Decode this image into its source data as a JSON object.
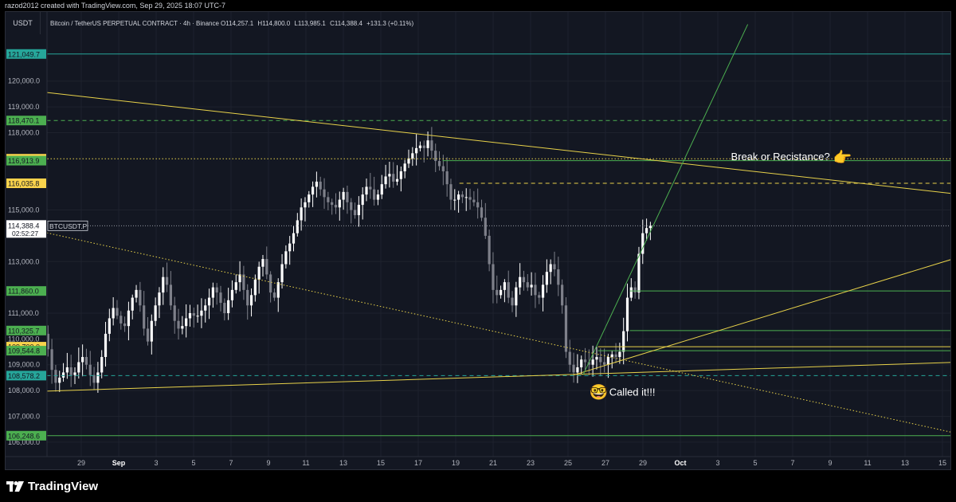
{
  "header": {
    "attribution": "razod2012 created with TradingView.com, Sep 29, 2025 18:07 UTC-7"
  },
  "symbol_bar": {
    "currency": "USDT",
    "title": "Bitcoin / TetherUS PERPETUAL CONTRACT · 4h · Binance",
    "open_label": "O",
    "open": "114,257.1",
    "high_label": "H",
    "high": "114,800.0",
    "low_label": "L",
    "low": "113,985.1",
    "close_label": "C",
    "close": "114,388.4",
    "change": "+131.3 (+0.11%)"
  },
  "footer": {
    "brand": "TradingView"
  },
  "colors": {
    "background": "#131722",
    "candle_up": "#ffffff",
    "candle_down": "#7e808a",
    "trendline": "#e8d24a",
    "level_green": "#4caf50",
    "level_teal": "#26a69a",
    "grid": "#1e222d"
  },
  "chart_data": {
    "type": "candlestick",
    "ylim": [
      105500,
      122000
    ],
    "y_ticks": [
      106000,
      107000,
      108000,
      109000,
      110000,
      111000,
      113000,
      115000,
      118000,
      119000,
      120000
    ],
    "y_tick_labels": [
      "106,000.0",
      "107,000.0",
      "108,000.0",
      "109,000.0",
      "110,000.0",
      "111,000.0",
      "113,000.0",
      "115,000.0",
      "118,000.0",
      "119,000.0",
      "120,000.0"
    ],
    "x_ticks": [
      {
        "day": 29,
        "label": "29",
        "bold": false
      },
      {
        "day": 31,
        "label": "Sep",
        "bold": true
      },
      {
        "day": 33,
        "label": "3",
        "bold": false
      },
      {
        "day": 35,
        "label": "5",
        "bold": false
      },
      {
        "day": 37,
        "label": "7",
        "bold": false
      },
      {
        "day": 39,
        "label": "9",
        "bold": false
      },
      {
        "day": 41,
        "label": "11",
        "bold": false
      },
      {
        "day": 43,
        "label": "13",
        "bold": false
      },
      {
        "day": 45,
        "label": "15",
        "bold": false
      },
      {
        "day": 47,
        "label": "17",
        "bold": false
      },
      {
        "day": 49,
        "label": "19",
        "bold": false
      },
      {
        "day": 51,
        "label": "21",
        "bold": false
      },
      {
        "day": 53,
        "label": "23",
        "bold": false
      },
      {
        "day": 55,
        "label": "25",
        "bold": false
      },
      {
        "day": 57,
        "label": "27",
        "bold": false
      },
      {
        "day": 59,
        "label": "29",
        "bold": false
      },
      {
        "day": 61,
        "label": "Oct",
        "bold": true
      },
      {
        "day": 63,
        "label": "3",
        "bold": false
      },
      {
        "day": 65,
        "label": "5",
        "bold": false
      },
      {
        "day": 67,
        "label": "7",
        "bold": false
      },
      {
        "day": 69,
        "label": "9",
        "bold": false
      },
      {
        "day": 71,
        "label": "11",
        "bold": false
      },
      {
        "day": 73,
        "label": "13",
        "bold": false
      },
      {
        "day": 75,
        "label": "15",
        "bold": false
      }
    ],
    "price_closes": [
      111800,
      112200,
      111500,
      110800,
      110200,
      109600,
      108800,
      108300,
      108500,
      108700,
      108900,
      108600,
      108700,
      109100,
      109300,
      109000,
      108600,
      108300,
      108700,
      109300,
      110200,
      110800,
      111200,
      110900,
      110600,
      110500,
      111100,
      111600,
      111900,
      111300,
      110400,
      109900,
      110700,
      111300,
      111800,
      112400,
      112100,
      111300,
      110700,
      110400,
      110500,
      110800,
      111000,
      110900,
      110900,
      111100,
      111300,
      111600,
      112000,
      111800,
      111400,
      111000,
      111500,
      111900,
      112200,
      112500,
      111900,
      111300,
      111700,
      112300,
      112800,
      113100,
      112500,
      111800,
      111600,
      112200,
      112900,
      113400,
      113700,
      114100,
      114600,
      115100,
      115300,
      115600,
      115900,
      116100,
      115800,
      115500,
      115300,
      115200,
      115100,
      115400,
      115700,
      115300,
      115000,
      114800,
      115200,
      115600,
      115900,
      115800,
      115400,
      115600,
      116000,
      116300,
      116400,
      116100,
      116200,
      116500,
      116800,
      117000,
      117200,
      117400,
      117500,
      117400,
      117700,
      117300,
      116900,
      116700,
      116500,
      116000,
      115400,
      115400,
      115600,
      115500,
      115500,
      115400,
      115300,
      115100,
      114700,
      114000,
      112900,
      111900,
      111700,
      111900,
      112200,
      111600,
      111300,
      112000,
      112400,
      112200,
      112000,
      112100,
      111700,
      111600,
      112100,
      112600,
      112900,
      112700,
      112100,
      111300,
      109500,
      109000,
      108700,
      108900,
      109200,
      109100,
      109000,
      109200,
      109300,
      109100,
      109000,
      109300,
      109400,
      109300,
      109500,
      110300,
      111600,
      112000,
      111800,
      113300,
      114100,
      114300,
      114388
    ],
    "levels": [
      {
        "price": 121049.7,
        "label": "121,049.7",
        "style": "solid",
        "color": "#26a69a",
        "badge": "#26a69a",
        "x_start_day": 26
      },
      {
        "price": 118470.1,
        "label": "118,470.1",
        "style": "dashed",
        "color": "#4caf50",
        "badge": "#4caf50",
        "x_start_day": 26
      },
      {
        "price": 116988.0,
        "label": "116,988.0",
        "style": "dotted",
        "color": "#e8d24a",
        "badge": "#f9d34c",
        "x_start_day": 26
      },
      {
        "price": 116913.9,
        "label": "116,913.9",
        "style": "solid",
        "color": "#4caf50",
        "badge": "#4caf50",
        "x_start_day": 48.3
      },
      {
        "price": 116035.8,
        "label": "116,035.8",
        "style": "dashed",
        "color": "#e8d24a",
        "badge": "#f9d34c",
        "x_start_day": 49.2
      },
      {
        "price": 111860.0,
        "label": "111,860.0",
        "style": "solid",
        "color": "#4caf50",
        "badge": "#4caf50",
        "x_start_day": 58.3
      },
      {
        "price": 110325.7,
        "label": "110,325.7",
        "style": "solid",
        "color": "#4caf50",
        "badge": "#4caf50",
        "x_start_day": 58.3
      },
      {
        "price": 109700.0,
        "label": "109,700.0",
        "style": "solid",
        "color": "#e8d24a",
        "badge": "#f9d34c",
        "x_start_day": 56.6
      },
      {
        "price": 109544.8,
        "label": "109,544.8",
        "style": "solid",
        "color": "#4caf50",
        "badge": "#4caf50",
        "x_start_day": 56.6
      },
      {
        "price": 108578.2,
        "label": "108,578.2",
        "style": "dashed",
        "color": "#26a69a",
        "badge": "#26a69a",
        "x_start_day": 26
      },
      {
        "price": 106248.6,
        "label": "106,248.6",
        "style": "solid",
        "color": "#4caf50",
        "badge": "#4caf50",
        "x_start_day": 26
      }
    ],
    "current_price": {
      "label": "114,388.4",
      "countdown": "02:52:27",
      "symbol": "BTCUSDT.P",
      "price": 114388.4
    },
    "trendlines": [
      {
        "x1": 26,
        "y1": 119650,
        "x2": 76,
        "y2": 115600,
        "color": "#e8d24a",
        "style": "solid"
      },
      {
        "x1": 26,
        "y1": 107950,
        "x2": 76,
        "y2": 109100,
        "color": "#e8d24a",
        "style": "solid"
      },
      {
        "x1": 55.3,
        "y1": 108600,
        "x2": 76,
        "y2": 113200,
        "color": "#e8d24a",
        "style": "solid"
      },
      {
        "x1": 26,
        "y1": 114300,
        "x2": 76,
        "y2": 106300,
        "color": "#e8d24a",
        "style": "dotted"
      },
      {
        "x1": 55.8,
        "y1": 108600,
        "x2": 64.6,
        "y2": 122200,
        "color": "#4caf50",
        "style": "solid"
      }
    ],
    "annotations": [
      {
        "text": "Break or Recistance?",
        "x_day": 63.7,
        "price": 117050,
        "emoji": "👉"
      },
      {
        "text": "Called it!!!",
        "x_day": 57.2,
        "price": 107950,
        "emoji": "🤓"
      }
    ]
  }
}
